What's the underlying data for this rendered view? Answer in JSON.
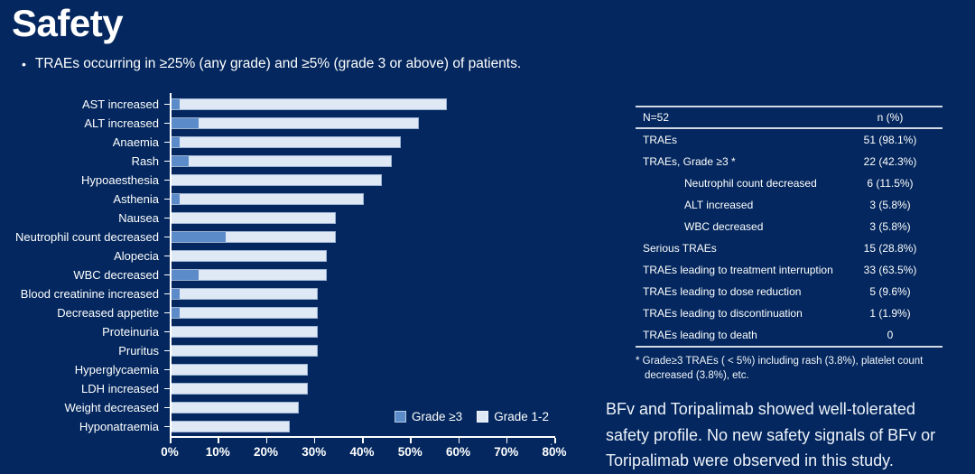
{
  "slide": {
    "title": "Safety",
    "bullet_marker": "•",
    "bullet": "TRAEs occurring in ≥25% (any grade) and ≥5% (grade 3 or above) of patients."
  },
  "chart_data": {
    "type": "bar",
    "orientation": "horizontal",
    "stacked": true,
    "title": "",
    "xlabel": "",
    "ylabel": "",
    "xlim": [
      0,
      80
    ],
    "x_tick_labels": [
      "0%",
      "10%",
      "20%",
      "30%",
      "40%",
      "50%",
      "60%",
      "70%",
      "80%"
    ],
    "grid": false,
    "legend_position": "inside-bottom-right",
    "axis_end_dot": ".",
    "categories": [
      "AST increased",
      "ALT increased",
      "Anaemia",
      "Rash",
      "Hypoaesthesia",
      "Asthenia",
      "Nausea",
      "Neutrophil count decreased",
      "Alopecia",
      "WBC decreased",
      "Blood creatinine increased",
      "Decreased appetite",
      "Proteinuria",
      "Pruritus",
      "Hyperglycaemia",
      "LDH increased",
      "Weight decreased",
      "Hyponatraemia"
    ],
    "series": [
      {
        "name": "Grade ≥3",
        "color": "#5b8bc9",
        "values": [
          1.9,
          5.8,
          1.9,
          3.8,
          0,
          1.9,
          0,
          11.5,
          0,
          5.8,
          1.9,
          1.9,
          0,
          0,
          0,
          0,
          0,
          0
        ]
      },
      {
        "name": "Grade 1-2",
        "color": "#dfe9f6",
        "values": [
          55.8,
          46.1,
          46.2,
          42.4,
          44.2,
          38.5,
          34.6,
          23.1,
          32.7,
          26.9,
          28.9,
          28.9,
          30.8,
          30.8,
          28.8,
          28.8,
          26.9,
          25.0
        ]
      }
    ],
    "totals_any_grade_pct": [
      57.7,
      51.9,
      48.1,
      46.2,
      44.2,
      40.4,
      34.6,
      34.6,
      32.7,
      32.7,
      30.8,
      30.8,
      30.8,
      30.8,
      28.8,
      28.8,
      26.9,
      25.0
    ]
  },
  "table": {
    "header": {
      "label": "N=52",
      "value": "n (%)"
    },
    "rows": [
      {
        "label": "TRAEs",
        "value": "51 (98.1%)",
        "indent": false
      },
      {
        "label": "TRAEs, Grade ≥3 *",
        "value": "22 (42.3%)",
        "indent": false
      },
      {
        "label": "Neutrophil count decreased",
        "value": "6 (11.5%)",
        "indent": true
      },
      {
        "label": "ALT increased",
        "value": "3 (5.8%)",
        "indent": true
      },
      {
        "label": "WBC decreased",
        "value": "3 (5.8%)",
        "indent": true
      },
      {
        "label": "Serious TRAEs",
        "value": "15 (28.8%)",
        "indent": false
      },
      {
        "label": "TRAEs leading to treatment interruption",
        "value": "33 (63.5%)",
        "indent": false
      },
      {
        "label": "TRAEs leading to dose reduction",
        "value": "5 (9.6%)",
        "indent": false
      },
      {
        "label": "TRAEs leading to discontinuation",
        "value": "1 (1.9%)",
        "indent": false
      },
      {
        "label": "TRAEs leading to death",
        "value": "0",
        "indent": false
      }
    ],
    "footnote": "* Grade≥3 TRAEs ( < 5%) including rash (3.8%), platelet count decreased (3.8%), etc."
  },
  "summary_lines": [
    "BFv and Toripalimab showed well-tolerated",
    "safety profile. No new safety signals of BFv or",
    "Toripalimab were observed in this study."
  ],
  "colors": {
    "background": "#03275e",
    "grade3_bar": "#5b8bc9",
    "grade12_bar": "#dfe9f6",
    "bar_border": "#9db3d2",
    "axis": "#ffffff",
    "table_border": "#d3dae6",
    "text": "#ffffff"
  }
}
